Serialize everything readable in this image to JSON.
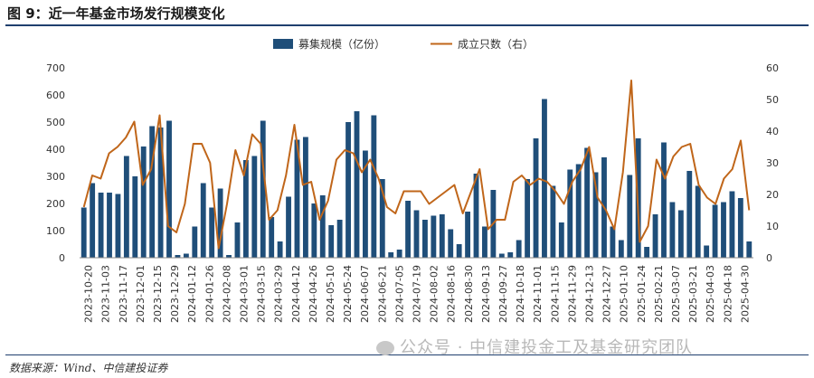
{
  "figure": {
    "title": "图 9：近一年基金市场发行规模变化",
    "source": "数据来源：Wind、中信建投证券",
    "watermark": "公众号 · 中信建投金工及基金研究团队"
  },
  "colors": {
    "bar": "#1f4e79",
    "line": "#c0661a",
    "rule": "#1f3f6e"
  },
  "chart_data": {
    "type": "bar",
    "title": "",
    "xlabel": "",
    "ylabel": "",
    "y_left_lim": [
      0,
      700
    ],
    "y_right_lim": [
      0,
      60
    ],
    "y_left_ticks": [
      0,
      100,
      200,
      300,
      400,
      500,
      600,
      700
    ],
    "y_right_ticks": [
      0,
      10,
      20,
      30,
      40,
      50,
      60
    ],
    "legend_position": "top-center",
    "x_tick_labels": [
      "2023-10-20",
      "2023-11-03",
      "2023-11-17",
      "2023-12-01",
      "2023-12-15",
      "2023-12-29",
      "2024-01-12",
      "2024-01-26",
      "2024-02-08",
      "2024-03-01",
      "2024-03-15",
      "2024-03-29",
      "2024-04-12",
      "2024-04-26",
      "2024-05-10",
      "2024-05-24",
      "2024-06-07",
      "2024-06-21",
      "2024-07-05",
      "2024-07-19",
      "2024-08-02",
      "2024-08-16",
      "2024-08-30",
      "2024-09-13",
      "2024-09-27",
      "2024-10-18",
      "2024-11-01",
      "2024-11-15",
      "2024-11-29",
      "2024-12-13",
      "2024-12-27",
      "2025-01-10",
      "2025-01-24",
      "2025-02-21",
      "2025-03-07",
      "2025-03-21",
      "2025-04-03",
      "2025-04-18",
      "2025-04-30"
    ],
    "series": [
      {
        "name": "募集规模（亿份）",
        "kind": "bar",
        "axis": "left",
        "values": [
          185,
          275,
          240,
          240,
          235,
          375,
          300,
          410,
          485,
          480,
          505,
          10,
          15,
          115,
          275,
          185,
          255,
          10,
          130,
          360,
          375,
          505,
          150,
          60,
          225,
          435,
          445,
          200,
          230,
          120,
          140,
          500,
          540,
          395,
          525,
          290,
          20,
          30,
          210,
          175,
          140,
          155,
          160,
          105,
          50,
          170,
          310,
          115,
          250,
          15,
          20,
          65,
          290,
          440,
          585,
          265,
          130,
          325,
          345,
          405,
          315,
          370,
          115,
          65,
          305,
          440,
          40,
          160,
          425,
          205,
          175,
          320,
          265,
          45,
          195,
          205,
          245,
          220,
          60
        ]
      },
      {
        "name": "成立只数（右）",
        "kind": "line",
        "axis": "right",
        "values": [
          16,
          26,
          25,
          33,
          35,
          38,
          43,
          23,
          28,
          45,
          10,
          8,
          17,
          36,
          36,
          30,
          3,
          17,
          34,
          26,
          39,
          36,
          12,
          15,
          26,
          42,
          23,
          24,
          12,
          18,
          31,
          34,
          33,
          27,
          31,
          25,
          16,
          14,
          21,
          21,
          21,
          17,
          19,
          21,
          23,
          14,
          21,
          28,
          9,
          12,
          12,
          24,
          26,
          23,
          25,
          24,
          21,
          17,
          24,
          28,
          35,
          19,
          15,
          9,
          27,
          56,
          5,
          10,
          31,
          25,
          32,
          35,
          36,
          23,
          19,
          17,
          25,
          28,
          37,
          15
        ]
      }
    ]
  }
}
